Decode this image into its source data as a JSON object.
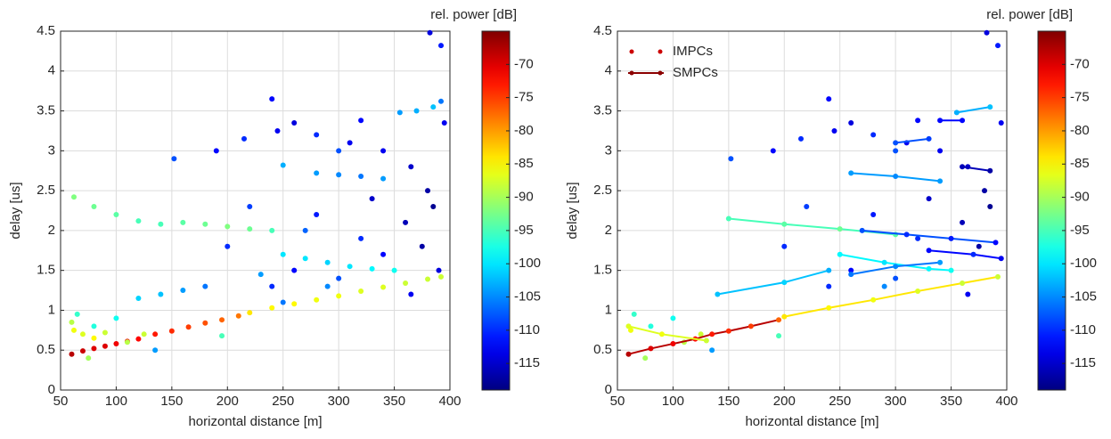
{
  "chart_data": [
    {
      "type": "scatter",
      "xlabel": "horizontal distance [m]",
      "ylabel": "delay [us]",
      "xlim": [
        50,
        400
      ],
      "ylim": [
        0,
        4.5
      ],
      "xticks": [
        50,
        100,
        150,
        200,
        250,
        300,
        350,
        400
      ],
      "yticks": [
        0,
        0.5,
        1,
        1.5,
        2,
        2.5,
        3,
        3.5,
        4,
        4.5
      ],
      "grid": true,
      "colormap": "jet",
      "colorbar": {
        "label": "rel. power [dB]",
        "lim": [
          -119,
          -65
        ],
        "ticks": [
          -115,
          -110,
          -105,
          -100,
          -95,
          -90,
          -85,
          -80,
          -75,
          -70
        ]
      },
      "series": [
        {
          "x": [
            60,
            70,
            80,
            90,
            100,
            110,
            120,
            135,
            150,
            165,
            180,
            195,
            210,
            220,
            240,
            260,
            280,
            300,
            320,
            340,
            360,
            380,
            392,
            62,
            80,
            100,
            120,
            140,
            160,
            180,
            200,
            220,
            240,
            250,
            270,
            290,
            310,
            330,
            350,
            250,
            280,
            300,
            320,
            340,
            355,
            370,
            385,
            392,
            152,
            190,
            215,
            240,
            245,
            260,
            280,
            300,
            310,
            320,
            340,
            365,
            380,
            382,
            392,
            395,
            200,
            220,
            240,
            260,
            280,
            300,
            320,
            340,
            360,
            375,
            390,
            385,
            365,
            330,
            290,
            270,
            250,
            230,
            180,
            160,
            140,
            120,
            100,
            80,
            65,
            135,
            195,
            62,
            70,
            80,
            90,
            75,
            110,
            125,
            60
          ],
          "y": [
            0.45,
            0.49,
            0.52,
            0.55,
            0.58,
            0.61,
            0.64,
            0.7,
            0.74,
            0.79,
            0.84,
            0.88,
            0.93,
            0.97,
            1.03,
            1.08,
            1.13,
            1.18,
            1.24,
            1.29,
            1.34,
            1.39,
            1.42,
            2.42,
            2.3,
            2.2,
            2.12,
            2.08,
            2.1,
            2.08,
            2.05,
            2.02,
            2.0,
            1.7,
            1.65,
            1.6,
            1.55,
            1.52,
            1.5,
            2.82,
            2.72,
            2.7,
            2.68,
            2.65,
            3.48,
            3.5,
            3.55,
            3.62,
            2.9,
            3.0,
            3.15,
            3.65,
            3.25,
            3.35,
            3.2,
            3.0,
            3.1,
            3.38,
            3.0,
            2.8,
            2.5,
            4.48,
            4.32,
            3.35,
            1.8,
            2.3,
            1.3,
            1.5,
            2.2,
            1.4,
            1.9,
            1.7,
            2.1,
            1.8,
            1.5,
            2.3,
            1.2,
            2.4,
            1.3,
            2.0,
            1.1,
            1.45,
            1.3,
            1.25,
            1.2,
            1.15,
            0.9,
            0.8,
            0.95,
            0.5,
            0.68,
            0.75,
            0.7,
            0.65,
            0.72,
            0.4,
            0.6,
            0.7,
            0.85
          ],
          "values": [
            -68,
            -69,
            -70,
            -70,
            -71,
            -71,
            -72,
            -73,
            -74,
            -75,
            -76,
            -77,
            -78,
            -84,
            -85,
            -85,
            -86,
            -86,
            -87,
            -87,
            -88,
            -88,
            -88,
            -92,
            -93,
            -94,
            -95,
            -95,
            -94,
            -93,
            -92,
            -93,
            -95,
            -100,
            -100,
            -101,
            -100,
            -99,
            -98,
            -103,
            -104,
            -105,
            -106,
            -104,
            -104,
            -103,
            -102,
            -106,
            -108,
            -112,
            -110,
            -112,
            -113,
            -114,
            -110,
            -108,
            -113,
            -112,
            -113,
            -115,
            -117,
            -114,
            -111,
            -113,
            -110,
            -109,
            -110,
            -112,
            -111,
            -108,
            -110,
            -112,
            -116,
            -117,
            -114,
            -118,
            -113,
            -115,
            -105,
            -107,
            -106,
            -104,
            -106,
            -104,
            -102,
            -101,
            -98,
            -97,
            -96,
            -104,
            -95,
            -86,
            -87,
            -85,
            -88,
            -90,
            -89,
            -88,
            -89
          ]
        }
      ]
    },
    {
      "type": "scatter",
      "xlabel": "horizontal distance [m]",
      "ylabel": "delay [us]",
      "xlim": [
        50,
        400
      ],
      "ylim": [
        0,
        4.5
      ],
      "xticks": [
        50,
        100,
        150,
        200,
        250,
        300,
        350,
        400
      ],
      "yticks": [
        0,
        0.5,
        1,
        1.5,
        2,
        2.5,
        3,
        3.5,
        4,
        4.5
      ],
      "grid": true,
      "colormap": "jet",
      "legend": "northwest",
      "colorbar": {
        "label": "rel. power [dB]",
        "lim": [
          -119,
          -65
        ],
        "ticks": [
          -115,
          -110,
          -105,
          -100,
          -95,
          -90,
          -85,
          -80,
          -75,
          -70
        ]
      },
      "series": [
        {
          "name": "IMPCs",
          "color": "#cc0000",
          "marker": "dot",
          "x": [
            152,
            190,
            215,
            240,
            245,
            260,
            280,
            300,
            310,
            320,
            340,
            365,
            380,
            382,
            392,
            395,
            200,
            220,
            240,
            260,
            280,
            300,
            320,
            360,
            375,
            385,
            365,
            330,
            290,
            100,
            80,
            65,
            135,
            195,
            62,
            75,
            110,
            125
          ],
          "y": [
            2.9,
            3.0,
            3.15,
            3.65,
            3.25,
            3.35,
            3.2,
            3.0,
            3.1,
            3.38,
            3.0,
            2.8,
            2.5,
            4.48,
            4.32,
            3.35,
            1.8,
            2.3,
            1.3,
            1.5,
            2.2,
            1.4,
            1.9,
            2.1,
            1.8,
            2.3,
            1.2,
            2.4,
            1.3,
            0.9,
            0.8,
            0.95,
            0.5,
            0.68,
            0.75,
            0.4,
            0.6,
            0.7
          ],
          "values": [
            -108,
            -112,
            -110,
            -112,
            -113,
            -114,
            -110,
            -108,
            -113,
            -112,
            -113,
            -115,
            -117,
            -114,
            -111,
            -113,
            -110,
            -109,
            -110,
            -112,
            -111,
            -108,
            -110,
            -116,
            -117,
            -118,
            -113,
            -115,
            -105,
            -98,
            -97,
            -96,
            -104,
            -95,
            -86,
            -90,
            -89,
            -88
          ]
        },
        {
          "name": "SMPCs",
          "color": "#8b0000",
          "marker": "line",
          "tracks": [
            {
              "x": [
                60,
                80,
                100,
                120,
                135,
                150,
                170,
                195
              ],
              "y": [
                0.45,
                0.52,
                0.58,
                0.64,
                0.7,
                0.74,
                0.8,
                0.88
              ],
              "values": [
                -68,
                -70,
                -71,
                -72,
                -73,
                -74,
                -75,
                -77
              ]
            },
            {
              "x": [
                200,
                240,
                280,
                320,
                360,
                392
              ],
              "y": [
                0.92,
                1.03,
                1.13,
                1.24,
                1.34,
                1.42
              ],
              "values": [
                -84,
                -85,
                -86,
                -87,
                -88,
                -88
              ]
            },
            {
              "x": [
                150,
                200,
                250,
                300
              ],
              "y": [
                2.15,
                2.08,
                2.02,
                1.95
              ],
              "values": [
                -95,
                -94,
                -93,
                -94
              ]
            },
            {
              "x": [
                250,
                290,
                330,
                350
              ],
              "y": [
                1.7,
                1.6,
                1.52,
                1.5
              ],
              "values": [
                -99,
                -100,
                -99,
                -98
              ]
            },
            {
              "x": [
                260,
                300,
                340
              ],
              "y": [
                2.72,
                2.68,
                2.62
              ],
              "values": [
                -104,
                -105,
                -104
              ]
            },
            {
              "x": [
                355,
                385
              ],
              "y": [
                3.48,
                3.55
              ],
              "values": [
                -103,
                -102
              ]
            },
            {
              "x": [
                340,
                360
              ],
              "y": [
                3.38,
                3.38
              ],
              "values": [
                -112,
                -112
              ]
            },
            {
              "x": [
                300,
                330
              ],
              "y": [
                3.1,
                3.15
              ],
              "values": [
                -108,
                -109
              ]
            },
            {
              "x": [
                360,
                385
              ],
              "y": [
                2.8,
                2.75
              ],
              "values": [
                -116,
                -117
              ]
            },
            {
              "x": [
                330,
                370,
                395
              ],
              "y": [
                1.75,
                1.7,
                1.65
              ],
              "values": [
                -112,
                -110,
                -113
              ]
            },
            {
              "x": [
                60,
                90,
                130
              ],
              "y": [
                0.8,
                0.7,
                0.62
              ],
              "values": [
                -87,
                -86,
                -88
              ]
            },
            {
              "x": [
                140,
                200,
                240
              ],
              "y": [
                1.2,
                1.35,
                1.5
              ],
              "values": [
                -102,
                -101,
                -103
              ]
            },
            {
              "x": [
                260,
                300,
                340
              ],
              "y": [
                1.45,
                1.55,
                1.6
              ],
              "values": [
                -106,
                -105,
                -104
              ]
            },
            {
              "x": [
                270,
                310,
                350,
                390
              ],
              "y": [
                2.0,
                1.95,
                1.9,
                1.85
              ],
              "values": [
                -108,
                -110,
                -111,
                -112
              ]
            }
          ]
        }
      ]
    }
  ]
}
